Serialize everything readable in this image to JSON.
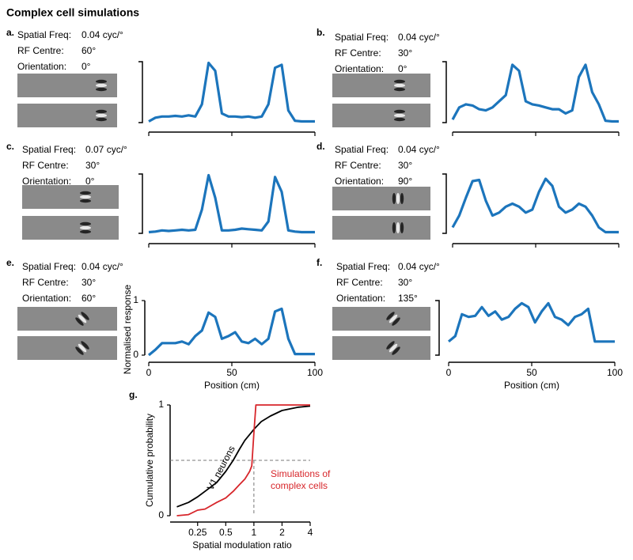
{
  "title": "Complex cell simulations",
  "chart_data": [
    {
      "type": "line",
      "panel": "a.",
      "params": [
        [
          "Spatial Freq:",
          "0.04 cyc/°"
        ],
        [
          "RF Centre:",
          "60°"
        ],
        [
          "Orientation:",
          "0°"
        ]
      ],
      "x": [
        0,
        4,
        8,
        12,
        16,
        20,
        24,
        28,
        32,
        36,
        40,
        44,
        48,
        52,
        56,
        60,
        64,
        68,
        72,
        76,
        80,
        84,
        88,
        92,
        96,
        100
      ],
      "values": [
        0.02,
        0.08,
        0.1,
        0.1,
        0.11,
        0.1,
        0.12,
        0.1,
        0.3,
        0.98,
        0.85,
        0.15,
        0.1,
        0.1,
        0.09,
        0.1,
        0.08,
        0.1,
        0.3,
        0.9,
        0.95,
        0.2,
        0.03,
        0.02,
        0.02,
        0.02
      ],
      "color": "#1c75bc",
      "xlim": [
        0,
        100
      ],
      "ylim": [
        0,
        1
      ],
      "xticks": [
        0,
        50,
        100
      ],
      "show_tick_labels": false
    },
    {
      "type": "line",
      "panel": "b.",
      "params": [
        [
          "Spatial Freq:",
          "0.04 cyc/°"
        ],
        [
          "RF Centre:",
          "30°"
        ],
        [
          "Orientation:",
          "0°"
        ]
      ],
      "x": [
        0,
        4,
        8,
        12,
        16,
        20,
        24,
        28,
        32,
        36,
        40,
        44,
        48,
        52,
        56,
        60,
        64,
        68,
        72,
        76,
        80,
        84,
        88,
        92,
        96,
        100
      ],
      "values": [
        0.05,
        0.25,
        0.3,
        0.28,
        0.22,
        0.2,
        0.25,
        0.35,
        0.45,
        0.95,
        0.85,
        0.35,
        0.3,
        0.28,
        0.25,
        0.22,
        0.22,
        0.15,
        0.2,
        0.75,
        0.95,
        0.5,
        0.3,
        0.03,
        0.02,
        0.02
      ],
      "color": "#1c75bc",
      "xlim": [
        0,
        100
      ],
      "ylim": [
        0,
        1
      ],
      "xticks": [
        0,
        50,
        100
      ],
      "show_tick_labels": false
    },
    {
      "type": "line",
      "panel": "c.",
      "params": [
        [
          "Spatial Freq:",
          "0.07 cyc/°"
        ],
        [
          "RF Centre:",
          "30°"
        ],
        [
          "Orientation:",
          "0°"
        ]
      ],
      "x": [
        0,
        4,
        8,
        12,
        16,
        20,
        24,
        28,
        32,
        36,
        40,
        44,
        48,
        52,
        56,
        60,
        64,
        68,
        72,
        76,
        80,
        84,
        88,
        92,
        96,
        100
      ],
      "values": [
        0.02,
        0.03,
        0.05,
        0.04,
        0.05,
        0.06,
        0.05,
        0.06,
        0.4,
        0.98,
        0.6,
        0.05,
        0.05,
        0.06,
        0.08,
        0.07,
        0.06,
        0.05,
        0.2,
        0.95,
        0.7,
        0.05,
        0.03,
        0.02,
        0.02,
        0.02
      ],
      "color": "#1c75bc",
      "xlim": [
        0,
        100
      ],
      "ylim": [
        0,
        1
      ],
      "xticks": [
        0,
        50,
        100
      ],
      "show_tick_labels": false
    },
    {
      "type": "line",
      "panel": "d.",
      "params": [
        [
          "Spatial Freq:",
          "0.04 cyc/°"
        ],
        [
          "RF Centre:",
          "30°"
        ],
        [
          "Orientation:",
          "90°"
        ]
      ],
      "x": [
        0,
        4,
        8,
        12,
        16,
        20,
        24,
        28,
        32,
        36,
        40,
        44,
        48,
        52,
        56,
        60,
        64,
        68,
        72,
        76,
        80,
        84,
        88,
        92,
        96,
        100
      ],
      "values": [
        0.1,
        0.3,
        0.6,
        0.88,
        0.9,
        0.55,
        0.3,
        0.35,
        0.45,
        0.5,
        0.45,
        0.35,
        0.4,
        0.7,
        0.92,
        0.8,
        0.45,
        0.35,
        0.4,
        0.5,
        0.45,
        0.3,
        0.1,
        0.02,
        0.02,
        0.02
      ],
      "color": "#1c75bc",
      "xlim": [
        0,
        100
      ],
      "ylim": [
        0,
        1
      ],
      "xticks": [
        0,
        50,
        100
      ],
      "show_tick_labels": false
    },
    {
      "type": "line",
      "panel": "e.",
      "params": [
        [
          "Spatial Freq:",
          "0.04 cyc/°"
        ],
        [
          "RF Centre:",
          "30°"
        ],
        [
          "Orientation:",
          "60°"
        ]
      ],
      "x": [
        0,
        4,
        8,
        12,
        16,
        20,
        24,
        28,
        32,
        36,
        40,
        44,
        48,
        52,
        56,
        60,
        64,
        68,
        72,
        76,
        80,
        84,
        88,
        92,
        96,
        100
      ],
      "values": [
        0,
        0.1,
        0.22,
        0.22,
        0.22,
        0.25,
        0.2,
        0.35,
        0.45,
        0.78,
        0.7,
        0.3,
        0.35,
        0.42,
        0.25,
        0.22,
        0.3,
        0.2,
        0.3,
        0.8,
        0.85,
        0.3,
        0.02,
        0.02,
        0.02,
        0.02
      ],
      "color": "#1c75bc",
      "xlim": [
        0,
        100
      ],
      "ylim": [
        0,
        1
      ],
      "xticks": [
        0,
        50,
        100
      ],
      "yticks": [
        0,
        1
      ],
      "show_tick_labels": true,
      "xlabel": "Position (cm)",
      "ylabel": "Normalised response"
    },
    {
      "type": "line",
      "panel": "f.",
      "params": [
        [
          "Spatial Freq:",
          "0.04 cyc/°"
        ],
        [
          "RF Centre:",
          "30°"
        ],
        [
          "Orientation:",
          "135°"
        ]
      ],
      "x": [
        0,
        4,
        8,
        12,
        16,
        20,
        24,
        28,
        32,
        36,
        40,
        44,
        48,
        52,
        56,
        60,
        64,
        68,
        72,
        76,
        80,
        84,
        88,
        92,
        96,
        100
      ],
      "values": [
        0.25,
        0.35,
        0.75,
        0.7,
        0.72,
        0.88,
        0.72,
        0.8,
        0.65,
        0.7,
        0.85,
        0.95,
        0.88,
        0.6,
        0.8,
        0.95,
        0.7,
        0.65,
        0.55,
        0.7,
        0.75,
        0.85,
        0.25,
        0.25,
        0.25,
        0.25
      ],
      "color": "#1c75bc",
      "xlim": [
        0,
        100
      ],
      "ylim": [
        0,
        1
      ],
      "xticks": [
        0,
        50,
        100
      ],
      "show_tick_labels": true,
      "xlabel": "Position (cm)"
    },
    {
      "type": "line",
      "panel": "g.",
      "xscale": "log",
      "xlim": [
        0.14,
        4
      ],
      "ylim": [
        0,
        1
      ],
      "xticks": [
        0.25,
        0.5,
        1,
        2,
        4
      ],
      "yticks": [
        0,
        1
      ],
      "show_tick_labels": true,
      "xlabel": "Spatial modulation ratio",
      "ylabel": "Cumulative probability",
      "reference_lines": [
        {
          "axis": "y",
          "value": 0.5
        },
        {
          "axis": "x",
          "value": 1
        }
      ],
      "series": [
        {
          "name": "V1 neurons",
          "color": "#000000",
          "x": [
            0.15,
            0.2,
            0.25,
            0.3,
            0.4,
            0.5,
            0.6,
            0.7,
            0.8,
            1,
            1.2,
            1.5,
            2,
            3,
            4
          ],
          "values": [
            0.08,
            0.12,
            0.17,
            0.22,
            0.3,
            0.4,
            0.5,
            0.6,
            0.68,
            0.78,
            0.85,
            0.9,
            0.95,
            0.98,
            0.99
          ]
        },
        {
          "name": "Simulations of complex cells",
          "color": "#d7262b",
          "x": [
            0.15,
            0.2,
            0.25,
            0.3,
            0.4,
            0.5,
            0.6,
            0.7,
            0.8,
            0.9,
            0.95,
            1,
            1.05,
            2,
            4
          ],
          "values": [
            0,
            0.01,
            0.05,
            0.06,
            0.12,
            0.16,
            0.22,
            0.28,
            0.33,
            0.4,
            0.45,
            0.75,
            1,
            1,
            1
          ]
        }
      ]
    }
  ]
}
